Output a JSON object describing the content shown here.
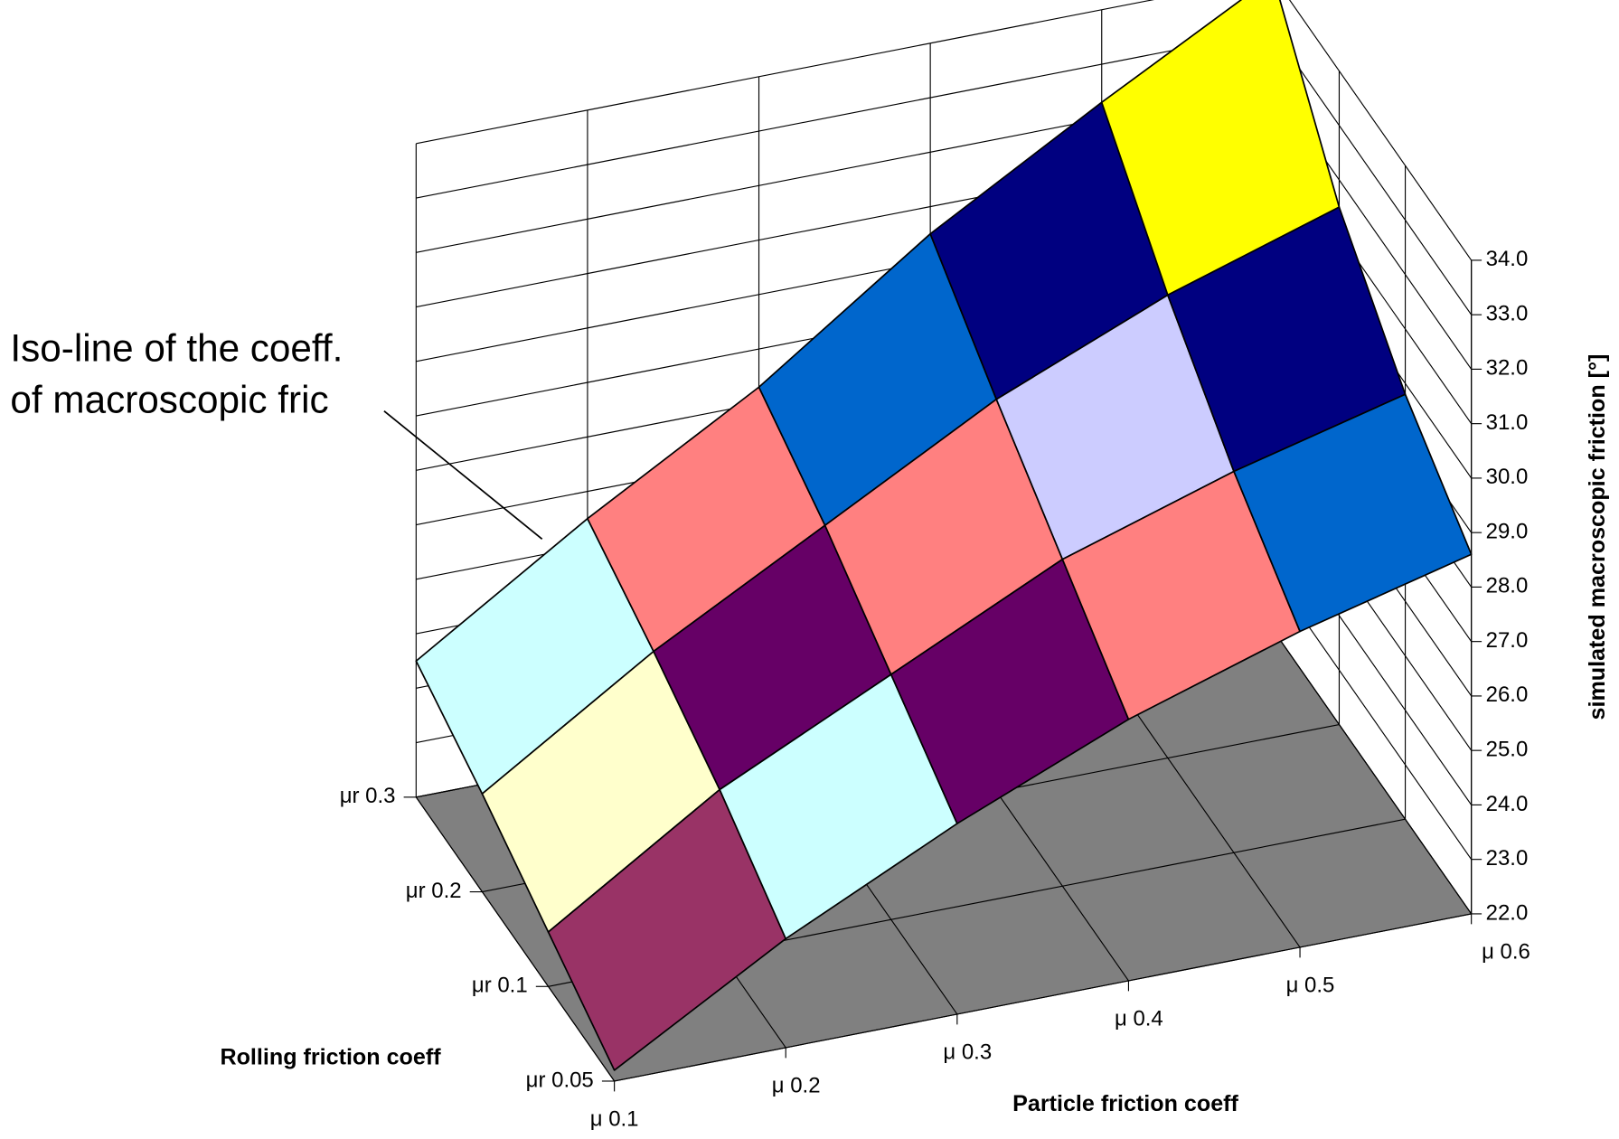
{
  "chart_data": {
    "type": "surface3d",
    "annotation": [
      "Iso-line of the coeff.",
      "of macroscopic fric"
    ],
    "x_label": "Particle friction coeff",
    "y_label": "Rolling friction coeff",
    "z_label": "simulated macroscopic friction [°]",
    "x_categories": [
      "μ 0.1",
      "μ 0.2",
      "μ 0.3",
      "μ 0.4",
      "μ 0.5",
      "μ 0.6"
    ],
    "y_categories": [
      "μr 0.05",
      "μr 0.1",
      "μr 0.2",
      "μr 0.3"
    ],
    "z": [
      [
        22.2,
        24.0,
        25.5,
        26.8,
        27.8,
        28.6
      ],
      [
        23.0,
        25.0,
        26.5,
        28.0,
        29.0,
        29.8
      ],
      [
        23.8,
        25.8,
        27.5,
        29.2,
        30.5,
        31.5
      ],
      [
        24.5,
        26.5,
        28.3,
        30.5,
        32.3,
        34.0
      ]
    ],
    "zlim": [
      22,
      34
    ],
    "zticks": [
      {
        "value": 22,
        "label": "22.0"
      },
      {
        "value": 23,
        "label": "23.0"
      },
      {
        "value": 24,
        "label": "24.0"
      },
      {
        "value": 25,
        "label": "25.0"
      },
      {
        "value": 26,
        "label": "26.0"
      },
      {
        "value": 27,
        "label": "27.0"
      },
      {
        "value": 28,
        "label": "28.0"
      },
      {
        "value": 29,
        "label": "29.0"
      },
      {
        "value": 30,
        "label": "30.0"
      },
      {
        "value": 31,
        "label": "31.0"
      },
      {
        "value": 32,
        "label": "32.0"
      },
      {
        "value": 33,
        "label": "33.0"
      },
      {
        "value": 34,
        "label": "34.0"
      }
    ],
    "colors": [
      "#9999ff",
      "#993366",
      "#ffffcc",
      "#ccffff",
      "#660066",
      "#ff8080",
      "#0066cc",
      "#ccccff",
      "#000080",
      "#ff00ff",
      "#ffff00",
      "#00ffff"
    ],
    "floor_color": "#808080",
    "grid": true
  }
}
